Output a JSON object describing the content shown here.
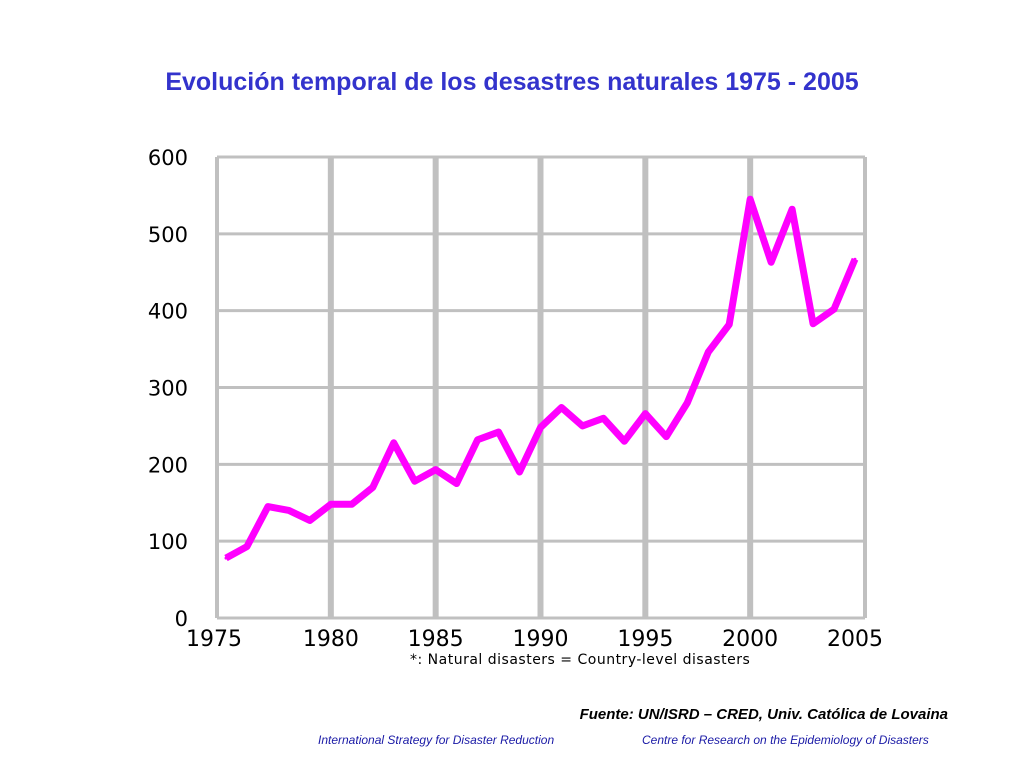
{
  "slide": {
    "title": "Evolución temporal de los desastres naturales 1975 - 2005",
    "source": "Fuente: UN/ISRD – CRED, Univ.  Católica de Lovaina",
    "footer_left": "International Strategy for Disaster Reduction",
    "footer_right": "Centre for Research on the Epidemiology of Disasters"
  },
  "colors": {
    "title": "#3333cc",
    "line": "#ff00ff",
    "grid": "#c0c0c0",
    "footer": "#1a1aa6"
  },
  "chart_data": {
    "type": "line",
    "title": "Evolución temporal de los desastres naturales 1975 - 2005",
    "note": "*: Natural disasters = Country-level disasters",
    "xlim": [
      1975,
      2005
    ],
    "ylim": [
      0,
      600
    ],
    "x_ticks": [
      1975,
      1980,
      1985,
      1990,
      1995,
      2000,
      2005
    ],
    "y_ticks": [
      0,
      100,
      200,
      300,
      400,
      500,
      600
    ],
    "grid": true,
    "series": [
      {
        "x": [
          1975,
          1976,
          1977,
          1978,
          1979,
          1980,
          1981,
          1982,
          1983,
          1984,
          1985,
          1986,
          1987,
          1988,
          1989,
          1990,
          1991,
          1992,
          1993,
          1994,
          1995,
          1996,
          1997,
          1998,
          1999,
          2000,
          2001,
          2002,
          2003,
          2004,
          2005
        ],
        "values": [
          78,
          93,
          145,
          140,
          127,
          148,
          148,
          170,
          228,
          178,
          193,
          175,
          232,
          242,
          190,
          248,
          274,
          250,
          260,
          230,
          266,
          236,
          280,
          346,
          382,
          545,
          463,
          532,
          383,
          402,
          467
        ]
      }
    ]
  }
}
